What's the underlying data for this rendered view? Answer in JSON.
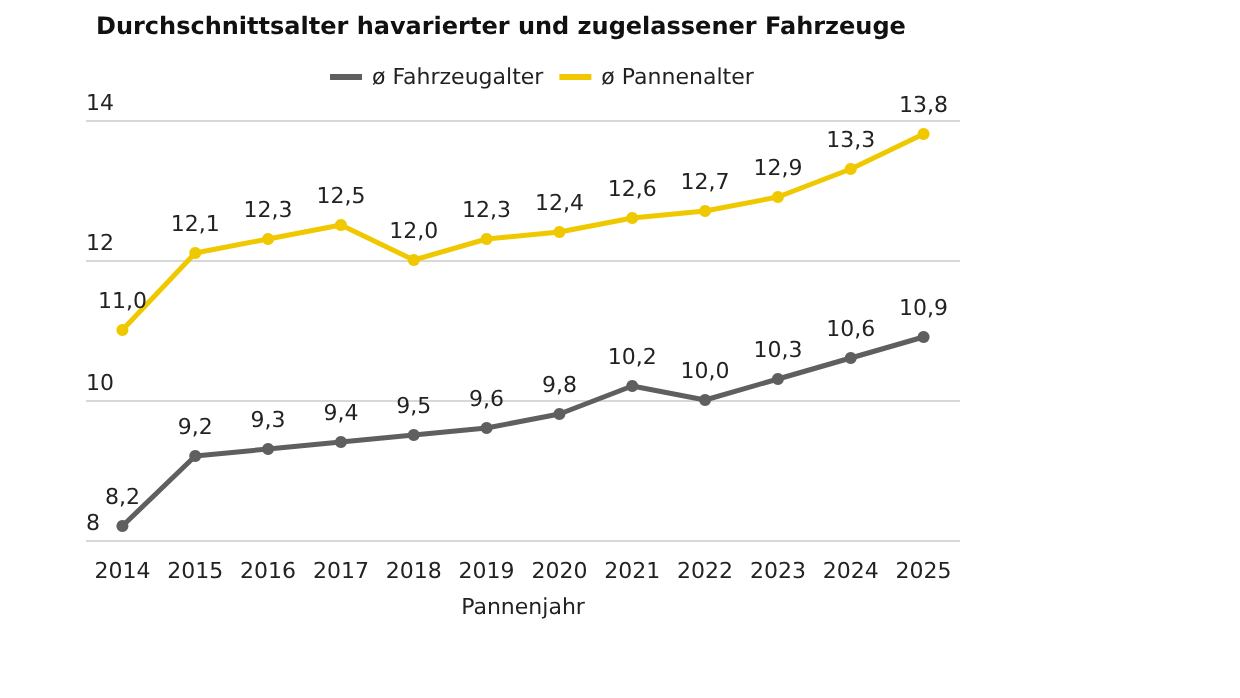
{
  "chart_data": {
    "type": "line",
    "title": "Durchschnittsalter havarierter und zugelassener Fahrzeuge",
    "xlabel": "Pannenjahr",
    "categories": [
      "2014",
      "2015",
      "2016",
      "2017",
      "2018",
      "2019",
      "2020",
      "2021",
      "2022",
      "2023",
      "2024",
      "2025"
    ],
    "series": [
      {
        "name": "ø Fahrzeugalter",
        "color": "#5f5f5f",
        "values": [
          8.2,
          9.2,
          9.3,
          9.4,
          9.5,
          9.6,
          9.8,
          10.2,
          10.0,
          10.3,
          10.6,
          10.9
        ],
        "value_labels": [
          "8,2",
          "9,2",
          "9,3",
          "9,4",
          "9,5",
          "9,6",
          "9,8",
          "10,2",
          "10,0",
          "10,3",
          "10,6",
          "10,9"
        ]
      },
      {
        "name": "ø Pannenalter",
        "color": "#f0c800",
        "values": [
          11.0,
          12.1,
          12.3,
          12.5,
          12.0,
          12.3,
          12.4,
          12.6,
          12.7,
          12.9,
          13.3,
          13.8
        ],
        "value_labels": [
          "11,0",
          "12,1",
          "12,3",
          "12,5",
          "12,0",
          "12,3",
          "12,4",
          "12,6",
          "12,7",
          "12,9",
          "13,3",
          "13,8"
        ]
      }
    ],
    "ylim": [
      8,
      14
    ],
    "yticks": [
      8,
      10,
      12,
      14
    ],
    "grid": "y",
    "legend": "top",
    "marker": "circle",
    "line_style": "solid"
  }
}
